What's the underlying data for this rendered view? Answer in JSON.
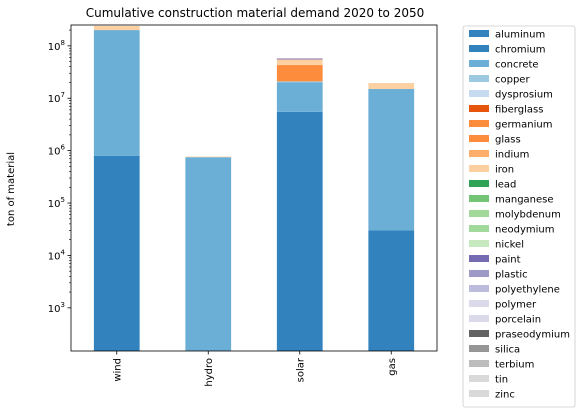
{
  "chart_data": {
    "type": "bar",
    "stacked": true,
    "title": "Cumulative construction material demand 2020 to 2050",
    "ylabel": "ton of material",
    "xlabel": "",
    "yscale": "log",
    "ylim": [
      150,
      250000000
    ],
    "yticks": [
      {
        "value": 1000,
        "base": "10",
        "exp": "3"
      },
      {
        "value": 10000,
        "base": "10",
        "exp": "4"
      },
      {
        "value": 100000,
        "base": "10",
        "exp": "5"
      },
      {
        "value": 1000000,
        "base": "10",
        "exp": "6"
      },
      {
        "value": 10000000,
        "base": "10",
        "exp": "7"
      },
      {
        "value": 100000000,
        "base": "10",
        "exp": "8"
      }
    ],
    "categories": [
      "wind",
      "hydro",
      "solar",
      "gas"
    ],
    "legend_position": "outside-right",
    "grid": false,
    "series": [
      {
        "name": "aluminum",
        "color": "#3182bd",
        "values": [
          0,
          0,
          0,
          0
        ]
      },
      {
        "name": "chromium",
        "color": "#3182bd",
        "values": [
          800000,
          0,
          5500000,
          30000
        ]
      },
      {
        "name": "concrete",
        "color": "#6baed6",
        "values": [
          199200000,
          750000,
          14500000,
          14970000
        ]
      },
      {
        "name": "copper",
        "color": "#9ecae1",
        "values": [
          0,
          0,
          1000000,
          0
        ]
      },
      {
        "name": "dysprosium",
        "color": "#c6dbef",
        "values": [
          0,
          0,
          0,
          0
        ]
      },
      {
        "name": "fiberglass",
        "color": "#e6550d",
        "values": [
          0,
          0,
          0,
          0
        ]
      },
      {
        "name": "germanium",
        "color": "#fd8d3c",
        "values": [
          0,
          0,
          0,
          0
        ]
      },
      {
        "name": "glass",
        "color": "#fd8d3c",
        "values": [
          0,
          0,
          22000000,
          0
        ]
      },
      {
        "name": "indium",
        "color": "#fdae6b",
        "values": [
          0,
          0,
          0,
          0
        ]
      },
      {
        "name": "iron",
        "color": "#fdd0a2",
        "values": [
          40000000,
          20000,
          12000000,
          4500000
        ]
      },
      {
        "name": "lead",
        "color": "#31a354",
        "values": [
          0,
          0,
          0,
          0
        ]
      },
      {
        "name": "manganese",
        "color": "#74c476",
        "values": [
          0,
          0,
          0,
          0
        ]
      },
      {
        "name": "molybdenum",
        "color": "#a1d99b",
        "values": [
          0,
          0,
          0,
          0
        ]
      },
      {
        "name": "neodymium",
        "color": "#a1d99b",
        "values": [
          0,
          0,
          0,
          0
        ]
      },
      {
        "name": "nickel",
        "color": "#c7e9c0",
        "values": [
          0,
          0,
          0,
          0
        ]
      },
      {
        "name": "paint",
        "color": "#756bb1",
        "values": [
          0,
          0,
          1500000,
          0
        ]
      },
      {
        "name": "plastic",
        "color": "#9e9ac8",
        "values": [
          0,
          0,
          1500000,
          0
        ]
      },
      {
        "name": "polyethylene",
        "color": "#bcbddc",
        "values": [
          0,
          0,
          0,
          0
        ]
      },
      {
        "name": "polymer",
        "color": "#dadaeb",
        "values": [
          0,
          0,
          0,
          0
        ]
      },
      {
        "name": "porcelain",
        "color": "#dadaeb",
        "values": [
          0,
          0,
          0,
          0
        ]
      },
      {
        "name": "praseodymium",
        "color": "#636363",
        "values": [
          0,
          0,
          0,
          0
        ]
      },
      {
        "name": "silica",
        "color": "#969696",
        "values": [
          0,
          0,
          0,
          0
        ]
      },
      {
        "name": "terbium",
        "color": "#bdbdbd",
        "values": [
          0,
          0,
          0,
          0
        ]
      },
      {
        "name": "tin",
        "color": "#d9d9d9",
        "values": [
          0,
          0,
          0,
          0
        ]
      },
      {
        "name": "zinc",
        "color": "#d9d9d9",
        "values": [
          0,
          0,
          0,
          0
        ]
      }
    ]
  }
}
